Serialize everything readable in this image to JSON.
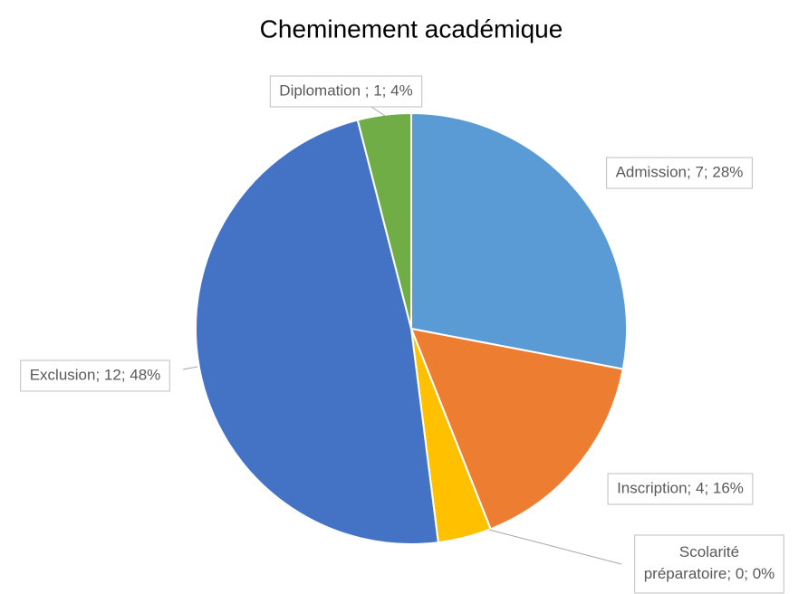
{
  "chart_data": {
    "type": "pie",
    "title": "Cheminement académique",
    "categories": [
      "Admission",
      "Inscription",
      "Scolarité préparatoire",
      null,
      "Exclusion",
      "Diplomation"
    ],
    "values": [
      7,
      4,
      0,
      1,
      12,
      1
    ],
    "value_labels": [
      "Admission; 7; 28%",
      "Inscription; 4; 16%",
      "Scolarité préparatoire; 0; 0%",
      null,
      "Exclusion; 12; 48%",
      "Diplomation ; 1; 4%"
    ],
    "colors": [
      "#5b9bd5",
      "#ed7d31",
      "#a5a5a5",
      "#ffc000",
      "#4472c4",
      "#70ad47"
    ]
  }
}
